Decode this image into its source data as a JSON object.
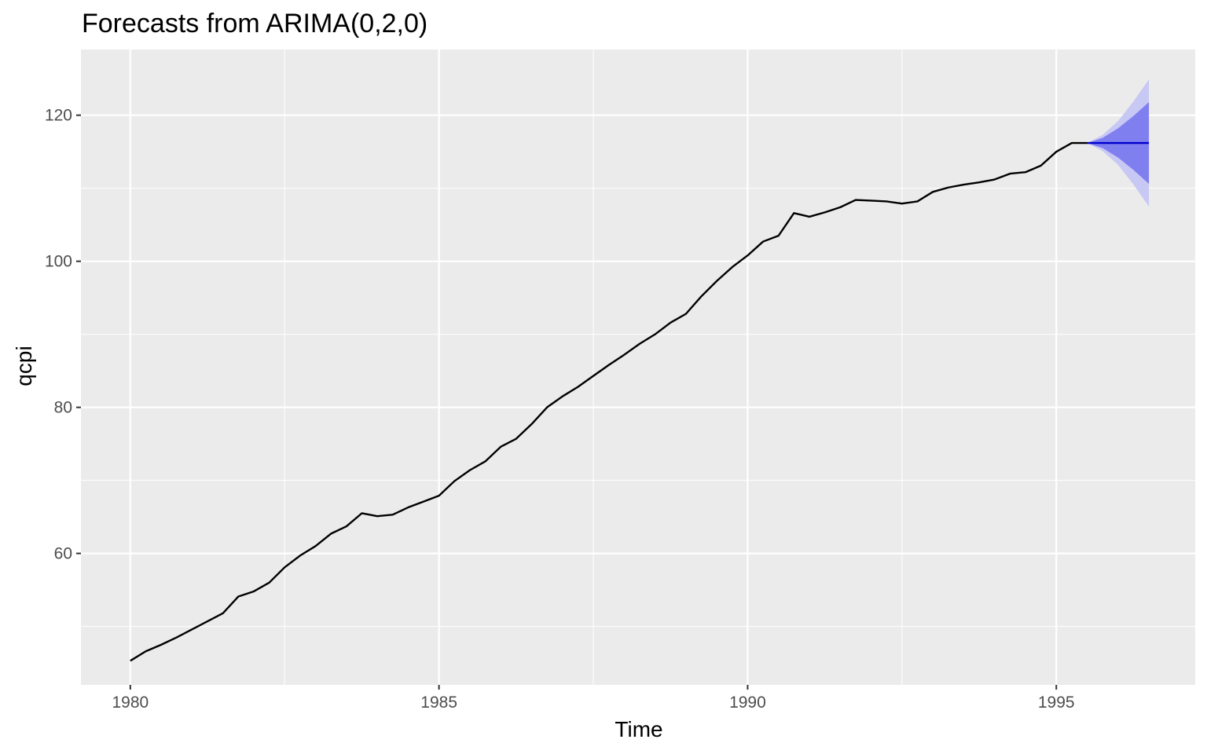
{
  "chart_data": {
    "type": "line",
    "title": "Forecasts from ARIMA(0,2,0)",
    "xlabel": "Time",
    "ylabel": "qcpi",
    "xlim": [
      1979.2,
      1997.25
    ],
    "ylim": [
      42,
      129
    ],
    "x_ticks": [
      1980,
      1985,
      1990,
      1995
    ],
    "x_tick_labels": [
      "1980",
      "1985",
      "1990",
      "1995"
    ],
    "y_ticks": [
      60,
      80,
      100,
      120
    ],
    "y_tick_labels": [
      "60",
      "80",
      "100",
      "120"
    ],
    "grid": true,
    "legend": "none",
    "colors": {
      "panel": "#ebebeb",
      "grid": "#ffffff",
      "series": "#000000",
      "forecast": "#0000cc",
      "interval_80": "#7f7ff0",
      "interval_95": "#c8c8f4"
    },
    "series": [
      {
        "role": "observed",
        "x": [
          1980.0,
          1980.25,
          1980.5,
          1980.75,
          1981.0,
          1981.25,
          1981.5,
          1981.75,
          1982.0,
          1982.25,
          1982.5,
          1982.75,
          1983.0,
          1983.25,
          1983.5,
          1983.75,
          1984.0,
          1984.25,
          1984.5,
          1984.75,
          1985.0,
          1985.25,
          1985.5,
          1985.75,
          1986.0,
          1986.25,
          1986.5,
          1986.75,
          1987.0,
          1987.25,
          1987.5,
          1987.75,
          1988.0,
          1988.25,
          1988.5,
          1988.75,
          1989.0,
          1989.25,
          1989.5,
          1989.75,
          1990.0,
          1990.25,
          1990.5,
          1990.75,
          1991.0,
          1991.25,
          1991.5,
          1991.75,
          1992.0,
          1992.25,
          1992.5,
          1992.75,
          1993.0,
          1993.25,
          1993.5,
          1993.75,
          1994.0,
          1994.25,
          1994.5,
          1994.75,
          1995.0,
          1995.25,
          1995.5
        ],
        "values": [
          45.3,
          46.6,
          47.5,
          48.5,
          49.6,
          50.7,
          51.8,
          54.1,
          54.8,
          56.0,
          58.1,
          59.7,
          61.0,
          62.7,
          63.7,
          65.5,
          65.1,
          65.3,
          66.3,
          67.1,
          67.9,
          69.9,
          71.4,
          72.6,
          74.6,
          75.7,
          77.7,
          80.0,
          81.5,
          82.8,
          84.3,
          85.8,
          87.2,
          88.7,
          90.0,
          91.6,
          92.8,
          95.2,
          97.3,
          99.2,
          100.8,
          102.7,
          103.5,
          106.6,
          106.1,
          106.7,
          107.4,
          108.4,
          108.3,
          108.2,
          107.9,
          108.2,
          109.5,
          110.1,
          110.5,
          110.8,
          111.2,
          112.0,
          112.2,
          113.1,
          115.0,
          116.2,
          116.2
        ]
      },
      {
        "role": "forecast",
        "x": [
          1995.75,
          1996.0,
          1996.25,
          1996.5
        ],
        "values": [
          116.2,
          116.2,
          116.2,
          116.2
        ],
        "lo80": [
          115.5,
          114.2,
          112.5,
          110.6
        ],
        "hi80": [
          116.9,
          118.2,
          119.9,
          121.8
        ],
        "lo95": [
          115.1,
          113.2,
          110.5,
          107.5
        ],
        "hi95": [
          117.3,
          119.2,
          121.9,
          124.9
        ]
      }
    ]
  }
}
